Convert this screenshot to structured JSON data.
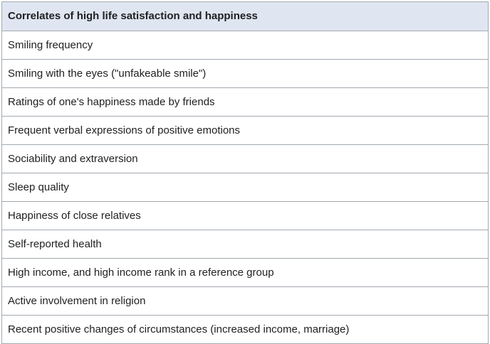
{
  "table": {
    "header": "Correlates of high life satisfaction and happiness",
    "rows": [
      "Smiling frequency",
      "Smiling with the eyes (\"unfakeable smile\")",
      "Ratings of one's happiness made by friends",
      "Frequent verbal expressions of positive emotions",
      "Sociability and extraversion",
      "Sleep quality",
      "Happiness of close relatives",
      "Self-reported health",
      "High income, and high income rank in a reference group",
      "Active involvement in religion",
      "Recent positive changes of circumstances (increased income, marriage)"
    ]
  }
}
